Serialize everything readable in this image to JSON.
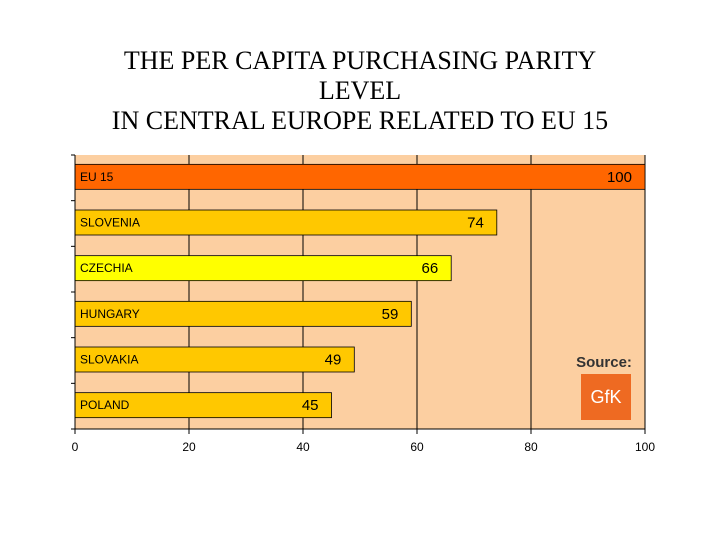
{
  "title_lines": [
    "THE PER CAPITA PURCHASING PARITY",
    "LEVEL",
    "IN CENTRAL EUROPE RELATED TO EU 15"
  ],
  "source": {
    "label": "Source:",
    "logo_text": "GfK"
  },
  "colors": {
    "plot_background": "#FCCFA1",
    "bar_default": "#FFC800",
    "bar_eu15": "#FF6600",
    "bar_highlight": "#FFFF00",
    "gridline": "#000000",
    "logo_background": "#EE6A22"
  },
  "chart_data": {
    "type": "bar",
    "orientation": "horizontal",
    "title": "THE PER CAPITA PURCHASING PARITY LEVEL IN CENTRAL EUROPE RELATED TO EU 15",
    "categories": [
      "EU 15",
      "SLOVENIA",
      "CZECHIA",
      "HUNGARY",
      "SLOVAKIA",
      "POLAND"
    ],
    "values": [
      100,
      74,
      66,
      59,
      49,
      45
    ],
    "value_labels": [
      "100",
      "74",
      "66",
      "59",
      "49",
      "45"
    ],
    "xlim": [
      0,
      100
    ],
    "x_ticks": [
      0,
      20,
      40,
      60,
      80,
      100
    ],
    "x_tick_labels": [
      "0",
      "20",
      "40",
      "60",
      "80",
      "100"
    ],
    "grid": true,
    "xlabel": "",
    "ylabel": ""
  }
}
